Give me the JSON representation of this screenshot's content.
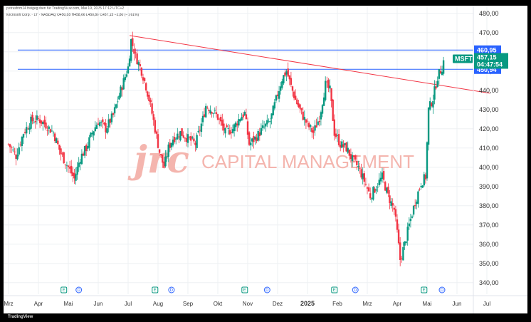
{
  "header": {
    "top_line": "petrusfrim14 freigegeben für TradingView.com, Mai 19, 2025 17:12 UTC+2",
    "symbol_line": "Microsoft Corp. · 1T · NASDAQ  O450,88  H458,66  L450,88  C457,15  −2,80 (−0,61%)"
  },
  "watermark": {
    "logo": "jrc",
    "text": "CAPITAL MANAGEMENT"
  },
  "footer": {
    "brand": "TradingView"
  },
  "chart_data": {
    "type": "candlestick",
    "title": "",
    "symbol": "MSFT",
    "timeframe": "1T",
    "exchange": "NASDAQ",
    "last_price_label": "457,15",
    "countdown_label": "04:47:54",
    "ylim": [
      334,
      484
    ],
    "y_ticks": [
      "480,00",
      "470,00",
      "460,00",
      "450,00",
      "440,00",
      "430,00",
      "420,00",
      "410,00",
      "400,00",
      "390,00",
      "380,00",
      "370,00",
      "360,00",
      "350,00",
      "340,00"
    ],
    "y_tick_values": [
      480,
      470,
      460,
      450,
      440,
      430,
      420,
      410,
      400,
      390,
      380,
      370,
      360,
      350,
      340
    ],
    "x_ticks": [
      "Mrz",
      "Apr",
      "Mai",
      "Jun",
      "Jul",
      "Aug",
      "Sep",
      "Okt",
      "Nov",
      "Dez",
      "2025",
      "Feb",
      "Mrz",
      "Apr",
      "Mai",
      "Jun",
      "Jul"
    ],
    "x_tick_bold": [
      false,
      false,
      false,
      false,
      false,
      false,
      false,
      false,
      false,
      false,
      true,
      false,
      false,
      false,
      false,
      false,
      false
    ],
    "x_tick_month_index": [
      0,
      1,
      2,
      3,
      4,
      5,
      6,
      7,
      8,
      9,
      10,
      11,
      12,
      13,
      14,
      15,
      16
    ],
    "price_lines": [
      {
        "label": "460,95",
        "value": 460.95,
        "color": "#2962ff"
      },
      {
        "label": "450,94",
        "value": 450.94,
        "color": "#2962ff"
      }
    ],
    "last_price_value": 457.15,
    "trendline": {
      "color": "#f23645",
      "from": {
        "month_index": 4.05,
        "value": 468.5
      },
      "to": {
        "month_index": 16.1,
        "value": 438.5
      }
    },
    "events": [
      {
        "month_index": 1.85,
        "label": "E",
        "kind": "earnings"
      },
      {
        "month_index": 2.35,
        "label": "D",
        "kind": "dividend"
      },
      {
        "month_index": 4.9,
        "label": "E",
        "kind": "earnings"
      },
      {
        "month_index": 5.45,
        "label": "D",
        "kind": "dividend"
      },
      {
        "month_index": 7.9,
        "label": "E",
        "kind": "earnings"
      },
      {
        "month_index": 8.65,
        "label": "D",
        "kind": "dividend"
      },
      {
        "month_index": 10.9,
        "label": "E",
        "kind": "earnings"
      },
      {
        "month_index": 11.6,
        "label": "D",
        "kind": "dividend"
      },
      {
        "month_index": 13.9,
        "label": "E",
        "kind": "earnings"
      },
      {
        "month_index": 14.5,
        "label": "D",
        "kind": "dividend"
      }
    ],
    "colors": {
      "up": "#089981",
      "down": "#f23645",
      "grid": "#eef0f3"
    },
    "close_path": [
      [
        0.0,
        412
      ],
      [
        0.25,
        406
      ],
      [
        0.5,
        418
      ],
      [
        0.75,
        424
      ],
      [
        1.0,
        425
      ],
      [
        1.25,
        422
      ],
      [
        1.5,
        418
      ],
      [
        1.75,
        407
      ],
      [
        2.0,
        400
      ],
      [
        2.2,
        394
      ],
      [
        2.4,
        405
      ],
      [
        2.6,
        410
      ],
      [
        2.8,
        418
      ],
      [
        3.0,
        424
      ],
      [
        3.25,
        420
      ],
      [
        3.5,
        427
      ],
      [
        3.75,
        440
      ],
      [
        4.0,
        452
      ],
      [
        4.1,
        466
      ],
      [
        4.25,
        458
      ],
      [
        4.45,
        450
      ],
      [
        4.6,
        442
      ],
      [
        4.75,
        432
      ],
      [
        4.9,
        420
      ],
      [
        5.05,
        408
      ],
      [
        5.2,
        400
      ],
      [
        5.35,
        410
      ],
      [
        5.5,
        415
      ],
      [
        5.75,
        418
      ],
      [
        6.0,
        415
      ],
      [
        6.25,
        412
      ],
      [
        6.5,
        425
      ],
      [
        6.6,
        432
      ],
      [
        6.8,
        430
      ],
      [
        7.0,
        426
      ],
      [
        7.25,
        418
      ],
      [
        7.5,
        420
      ],
      [
        7.75,
        426
      ],
      [
        7.9,
        428
      ],
      [
        8.05,
        412
      ],
      [
        8.25,
        415
      ],
      [
        8.5,
        420
      ],
      [
        8.75,
        424
      ],
      [
        9.0,
        438
      ],
      [
        9.15,
        446
      ],
      [
        9.3,
        450
      ],
      [
        9.45,
        442
      ],
      [
        9.6,
        435
      ],
      [
        9.8,
        428
      ],
      [
        10.0,
        422
      ],
      [
        10.2,
        418
      ],
      [
        10.4,
        426
      ],
      [
        10.6,
        443
      ],
      [
        10.75,
        440
      ],
      [
        10.9,
        418
      ],
      [
        11.1,
        412
      ],
      [
        11.3,
        410
      ],
      [
        11.5,
        404
      ],
      [
        11.7,
        400
      ],
      [
        11.9,
        393
      ],
      [
        12.1,
        385
      ],
      [
        12.3,
        390
      ],
      [
        12.5,
        395
      ],
      [
        12.7,
        385
      ],
      [
        12.9,
        378
      ],
      [
        13.0,
        366
      ],
      [
        13.1,
        352
      ],
      [
        13.25,
        360
      ],
      [
        13.4,
        370
      ],
      [
        13.6,
        382
      ],
      [
        13.8,
        392
      ],
      [
        13.95,
        395
      ],
      [
        14.05,
        430
      ],
      [
        14.2,
        436
      ],
      [
        14.35,
        447
      ],
      [
        14.5,
        452
      ],
      [
        14.58,
        457.15
      ]
    ]
  }
}
